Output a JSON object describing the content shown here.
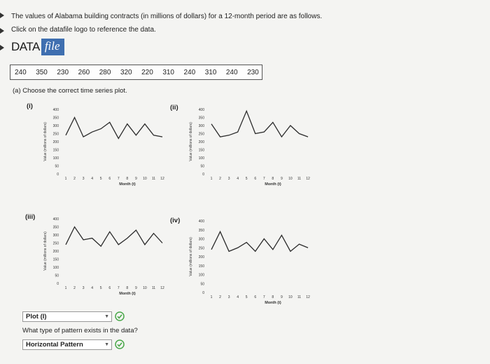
{
  "intro": {
    "line1": "The values of Alabama building contracts (in millions of dollars) for a 12-month period are as follows.",
    "line2": "Click on the datafile logo to reference the data."
  },
  "logo": {
    "part1": "DATA",
    "part2": "file"
  },
  "data_values": [
    240,
    350,
    230,
    260,
    280,
    320,
    220,
    310,
    240,
    310,
    240,
    230
  ],
  "question_a": "(a) Choose the correct time series plot.",
  "plot_labels": [
    "(i)",
    "(ii)",
    "(iii)",
    "(iv)"
  ],
  "answer_plot": {
    "value": "Plot (I)"
  },
  "question_pattern": "What type of pattern exists in the data?",
  "answer_pattern": {
    "value": "Horizontal Pattern"
  },
  "colors": {
    "check": "#4aa84a",
    "logo_blue": "#3f6fb0"
  },
  "chart_data": [
    {
      "type": "line",
      "label": "(i)",
      "x": [
        1,
        2,
        3,
        4,
        5,
        6,
        7,
        8,
        9,
        10,
        11,
        12
      ],
      "y": [
        240,
        350,
        230,
        260,
        280,
        320,
        220,
        310,
        240,
        310,
        240,
        230
      ],
      "xlabel": "Month (t)",
      "ylabel": "Value (millions of dollars)",
      "ylim": [
        0,
        400
      ],
      "yticks": [
        0,
        50,
        100,
        150,
        200,
        250,
        300,
        350,
        400
      ],
      "xticks": [
        1,
        2,
        3,
        4,
        5,
        6,
        7,
        8,
        9,
        10,
        11,
        12
      ]
    },
    {
      "type": "line",
      "label": "(ii)",
      "x": [
        1,
        2,
        3,
        4,
        5,
        6,
        7,
        8,
        9,
        10,
        11,
        12
      ],
      "y": [
        310,
        230,
        240,
        260,
        390,
        250,
        260,
        320,
        230,
        300,
        250,
        230
      ],
      "xlabel": "Month (t)",
      "ylabel": "Value (millions of dollars)",
      "ylim": [
        0,
        400
      ],
      "yticks": [
        0,
        50,
        100,
        150,
        200,
        250,
        300,
        350,
        400
      ],
      "xticks": [
        1,
        2,
        3,
        4,
        5,
        6,
        7,
        8,
        9,
        10,
        11,
        12
      ]
    },
    {
      "type": "line",
      "label": "(iii)",
      "x": [
        1,
        2,
        3,
        4,
        5,
        6,
        7,
        8,
        9,
        10,
        11,
        12
      ],
      "y": [
        240,
        350,
        270,
        280,
        230,
        320,
        240,
        280,
        330,
        240,
        310,
        250
      ],
      "xlabel": "Month (t)",
      "ylabel": "Value (millions of dollars)",
      "ylim": [
        0,
        400
      ],
      "yticks": [
        0,
        50,
        100,
        150,
        200,
        250,
        300,
        350,
        400
      ],
      "xticks": [
        1,
        2,
        3,
        4,
        5,
        6,
        7,
        8,
        9,
        10,
        11,
        12
      ]
    },
    {
      "type": "line",
      "label": "(iv)",
      "x": [
        1,
        2,
        3,
        4,
        5,
        6,
        7,
        8,
        9,
        10,
        11,
        12
      ],
      "y": [
        240,
        340,
        230,
        250,
        280,
        230,
        300,
        240,
        320,
        230,
        270,
        250
      ],
      "xlabel": "Month (t)",
      "ylabel": "Value (millions of dollars)",
      "ylim": [
        0,
        400
      ],
      "yticks": [
        0,
        50,
        100,
        150,
        200,
        250,
        300,
        350,
        400
      ],
      "xticks": [
        1,
        2,
        3,
        4,
        5,
        6,
        7,
        8,
        9,
        10,
        11,
        12
      ]
    }
  ]
}
